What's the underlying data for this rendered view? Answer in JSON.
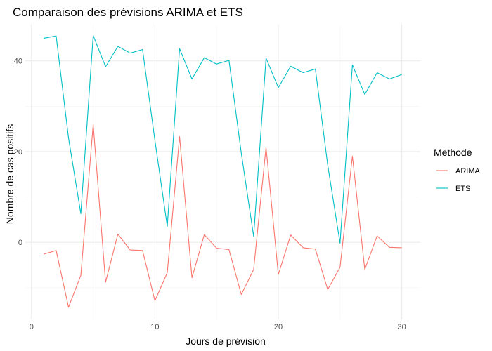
{
  "chart_data": {
    "type": "line",
    "title": "Comparaison des prévisions ARIMA et ETS",
    "xlabel": "Jours de prévision",
    "ylabel": "Nombre de cas positifs",
    "xlim": [
      -0.5,
      31.5
    ],
    "ylim": [
      -17,
      48
    ],
    "x_ticks": [
      0,
      10,
      20,
      30
    ],
    "y_ticks": [
      0,
      20,
      40
    ],
    "x_minor_ticks": [
      5,
      15,
      25
    ],
    "y_minor_ticks": [
      -10,
      10,
      30
    ],
    "grid": true,
    "legend_title": "Methode",
    "legend_position": "right",
    "x": [
      1,
      2,
      3,
      4,
      5,
      6,
      7,
      8,
      9,
      10,
      11,
      12,
      13,
      14,
      15,
      16,
      17,
      18,
      19,
      20,
      21,
      22,
      23,
      24,
      25,
      26,
      27,
      28,
      29,
      30
    ],
    "series": [
      {
        "name": "ARIMA",
        "color": "#F8766D",
        "values": [
          -2.6,
          -1.8,
          -14.3,
          -7.3,
          26.0,
          -8.8,
          1.8,
          -1.7,
          -1.8,
          -12.9,
          -6.7,
          23.3,
          -7.8,
          1.7,
          -1.3,
          -1.6,
          -11.5,
          -6.0,
          21.0,
          -7.1,
          1.6,
          -1.2,
          -1.5,
          -10.4,
          -5.5,
          19.0,
          -6.0,
          1.4,
          -1.1,
          -1.2
        ]
      },
      {
        "name": "ETS",
        "color": "#00BFC4",
        "values": [
          45.0,
          45.5,
          23.0,
          6.3,
          45.6,
          38.7,
          43.2,
          41.7,
          42.5,
          22.5,
          3.5,
          42.7,
          36.0,
          40.7,
          39.3,
          40.1,
          19.7,
          1.3,
          40.6,
          34.1,
          38.8,
          37.4,
          38.2,
          17.0,
          -0.2,
          39.1,
          32.6,
          37.4,
          36.0,
          37.0
        ]
      }
    ]
  }
}
